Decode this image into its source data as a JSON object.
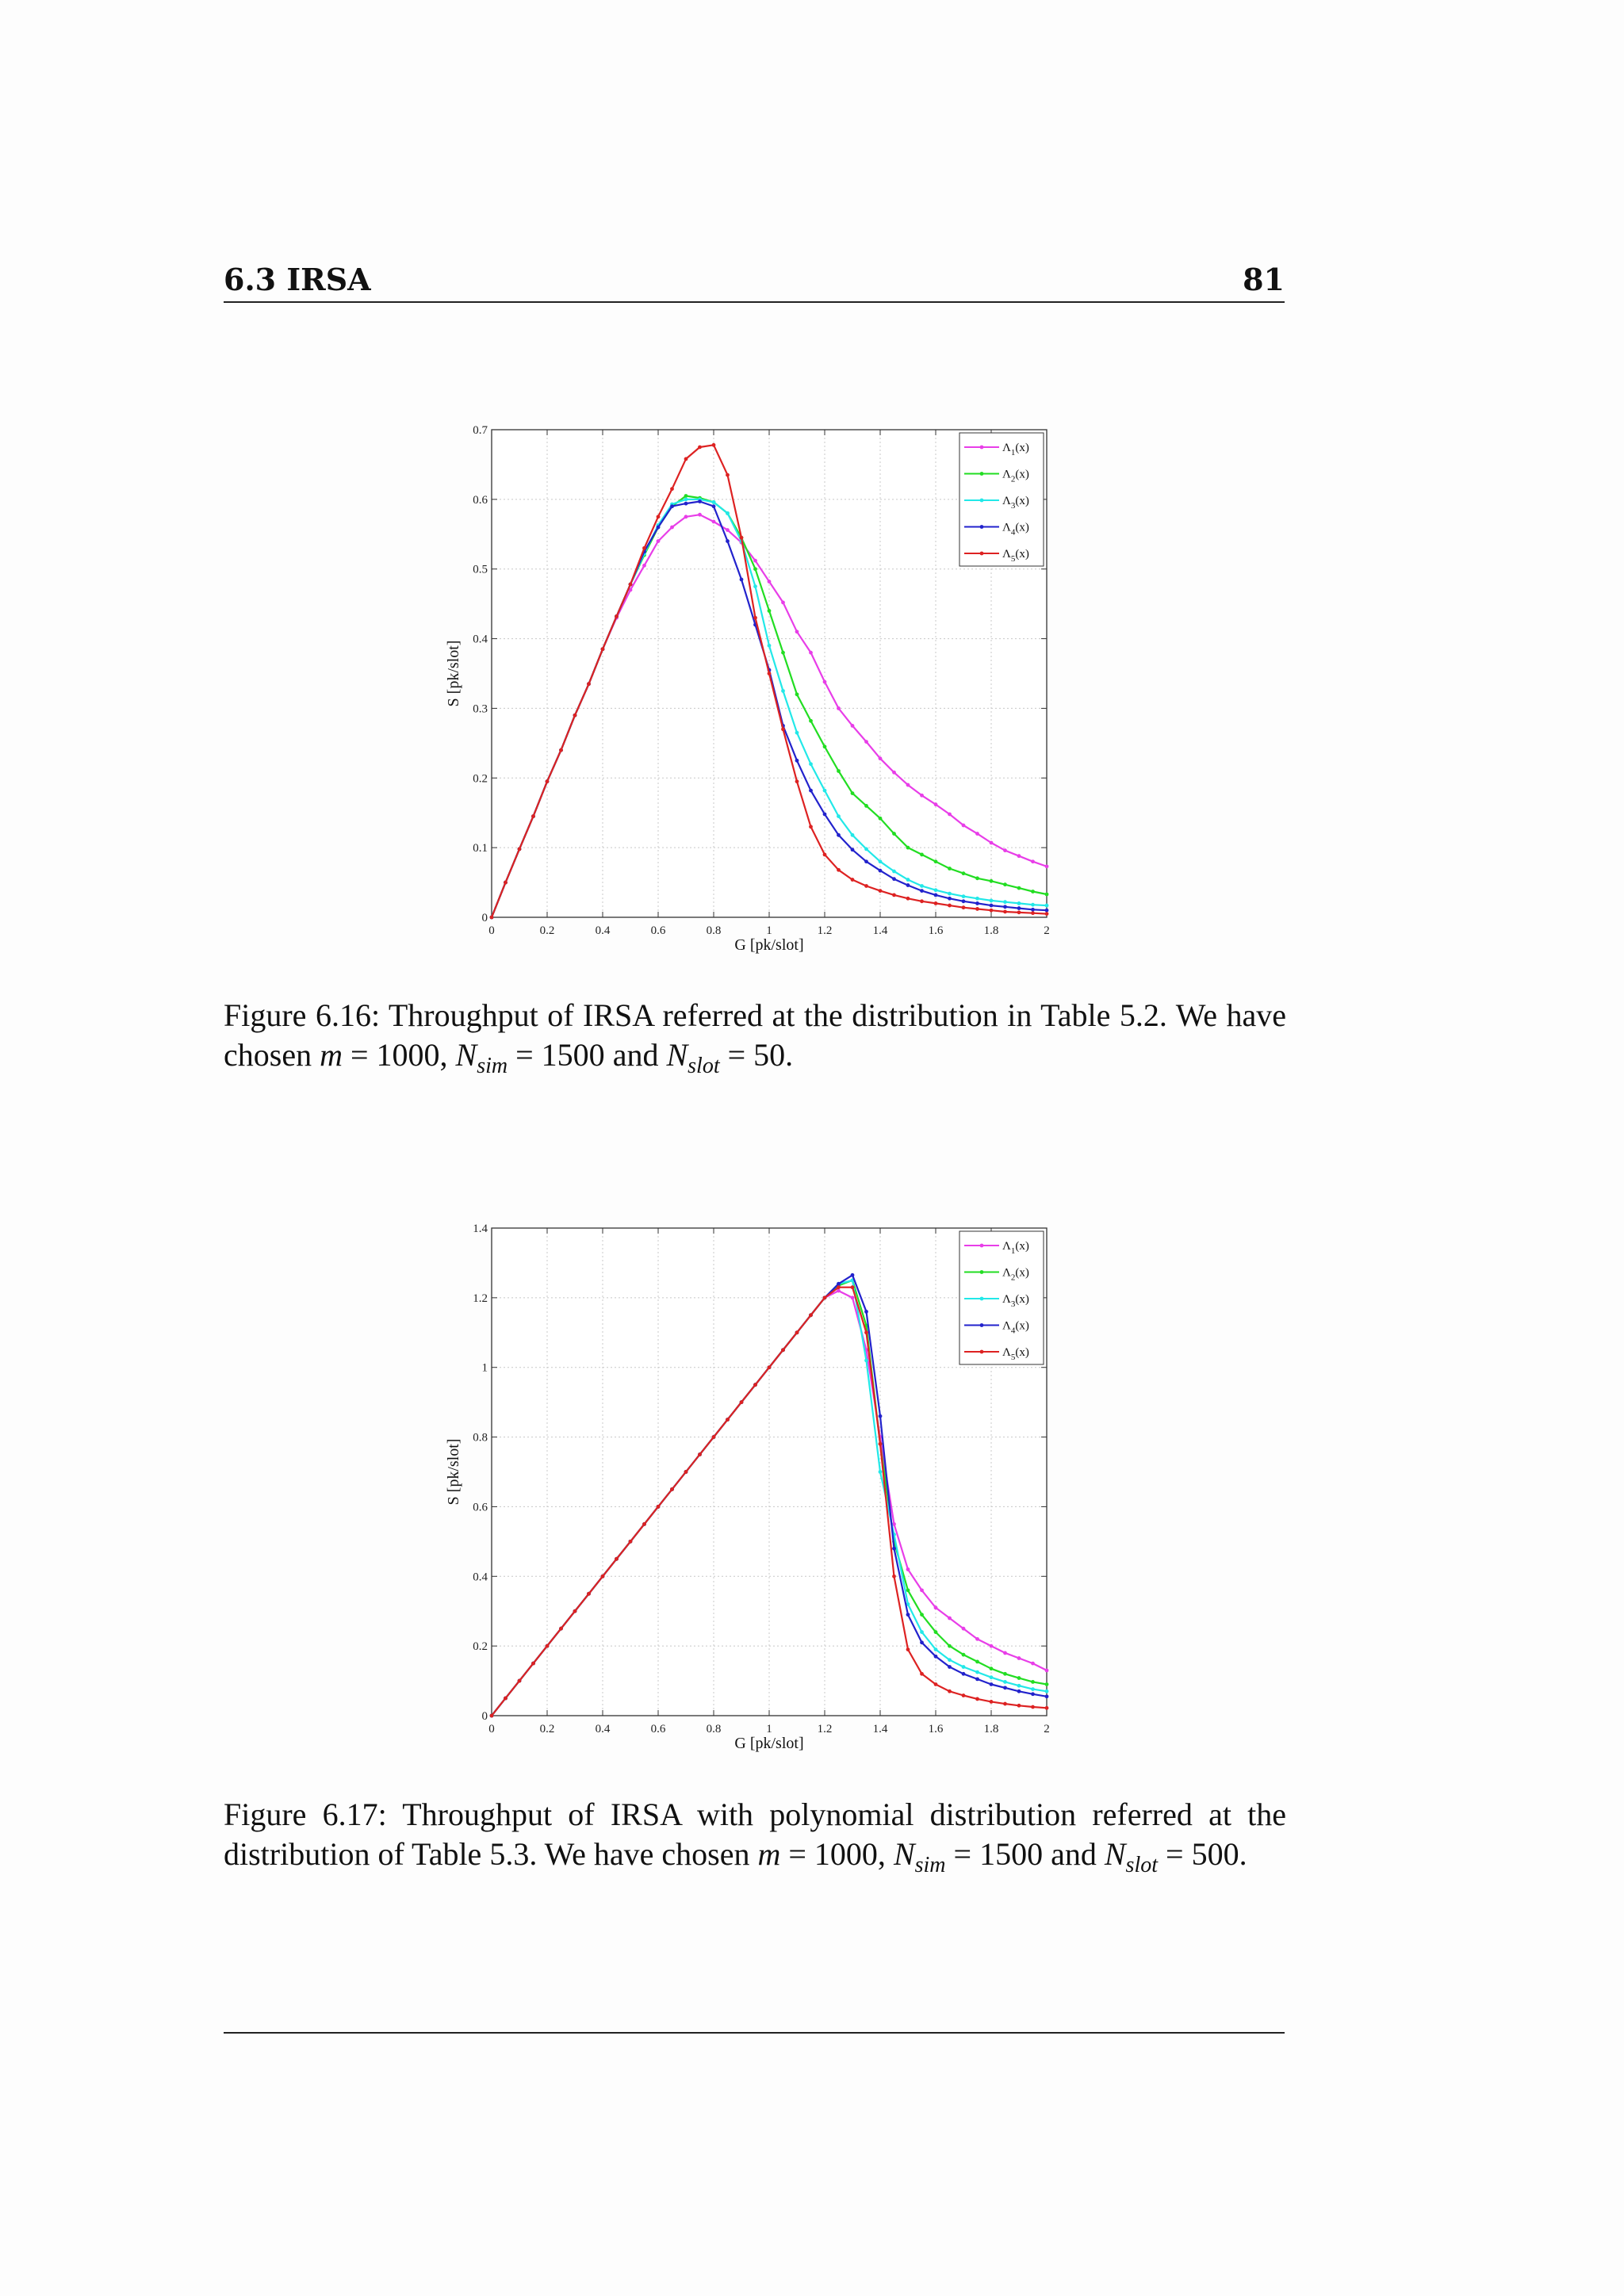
{
  "header": {
    "section": "6.3 IRSA",
    "page_number": "81"
  },
  "figures": [
    {
      "caption": {
        "label": "Figure 6.16:",
        "text": "Throughput of IRSA referred at the distribution in Table 5.2.",
        "line2_prefix": "We have chosen",
        "m_sym": "m",
        "m_val": "= 1000,",
        "nsim_sym": "N",
        "nsim_sub": "sim",
        "nsim_val": "= 1500",
        "and": "and",
        "nslot_sym": "N",
        "nslot_sub": "slot",
        "nslot_val": "= 50."
      }
    },
    {
      "caption": {
        "label": "Figure 6.17:",
        "text": "Throughput of IRSA with polynomial distribution referred at the distribution of Table 5.3. We have chosen",
        "m_sym": "m",
        "m_val": "= 1000,",
        "nsim_sym": "N",
        "nsim_sub": "sim",
        "nsim_val": "= 1500",
        "and": "and",
        "nslot_sym": "N",
        "nslot_sub": "slot",
        "nslot_val": "= 500."
      }
    }
  ],
  "chart_data": [
    {
      "type": "line",
      "xlabel": "G [pk/slot]",
      "ylabel": "S [pk/slot]",
      "xlim": [
        0,
        2
      ],
      "ylim": [
        0,
        0.7
      ],
      "xticks": [
        "0",
        "0.2",
        "0.4",
        "0.6",
        "0.8",
        "1",
        "1.2",
        "1.4",
        "1.6",
        "1.8",
        "2"
      ],
      "yticks": [
        "0",
        "0.1",
        "0.2",
        "0.3",
        "0.4",
        "0.5",
        "0.6",
        "0.7"
      ],
      "grid": true,
      "legend_position": "top-right",
      "x": [
        0,
        0.05,
        0.1,
        0.15,
        0.2,
        0.25,
        0.3,
        0.35,
        0.4,
        0.45,
        0.5,
        0.55,
        0.6,
        0.65,
        0.7,
        0.75,
        0.8,
        0.85,
        0.9,
        0.95,
        1.0,
        1.05,
        1.1,
        1.15,
        1.2,
        1.25,
        1.3,
        1.35,
        1.4,
        1.45,
        1.5,
        1.55,
        1.6,
        1.65,
        1.7,
        1.75,
        1.8,
        1.85,
        1.9,
        1.95,
        2.0
      ],
      "series": [
        {
          "name": "Λ1(x)",
          "label_main": "Λ",
          "label_sub": "1",
          "label_tail": "(x)",
          "color": "#e83ee8",
          "values": [
            0,
            0.05,
            0.098,
            0.145,
            0.195,
            0.24,
            0.29,
            0.335,
            0.385,
            0.43,
            0.47,
            0.505,
            0.54,
            0.56,
            0.575,
            0.578,
            0.568,
            0.556,
            0.538,
            0.512,
            0.482,
            0.452,
            0.41,
            0.38,
            0.338,
            0.3,
            0.275,
            0.252,
            0.228,
            0.208,
            0.19,
            0.175,
            0.162,
            0.148,
            0.132,
            0.12,
            0.107,
            0.096,
            0.088,
            0.08,
            0.073
          ]
        },
        {
          "name": "Λ2(x)",
          "label_main": "Λ",
          "label_sub": "2",
          "label_tail": "(x)",
          "color": "#22dd22",
          "values": [
            0,
            0.05,
            0.098,
            0.145,
            0.195,
            0.24,
            0.29,
            0.335,
            0.385,
            0.432,
            0.478,
            0.52,
            0.56,
            0.59,
            0.605,
            0.602,
            0.596,
            0.58,
            0.545,
            0.5,
            0.44,
            0.38,
            0.32,
            0.282,
            0.245,
            0.21,
            0.178,
            0.16,
            0.142,
            0.12,
            0.1,
            0.09,
            0.08,
            0.07,
            0.063,
            0.056,
            0.052,
            0.047,
            0.042,
            0.037,
            0.033
          ]
        },
        {
          "name": "Λ3(x)",
          "label_main": "Λ",
          "label_sub": "3",
          "label_tail": "(x)",
          "color": "#22e8e8",
          "values": [
            0,
            0.05,
            0.098,
            0.145,
            0.195,
            0.24,
            0.29,
            0.335,
            0.385,
            0.432,
            0.478,
            0.522,
            0.563,
            0.593,
            0.6,
            0.6,
            0.596,
            0.58,
            0.54,
            0.475,
            0.39,
            0.325,
            0.265,
            0.22,
            0.182,
            0.145,
            0.118,
            0.098,
            0.08,
            0.066,
            0.054,
            0.045,
            0.039,
            0.034,
            0.03,
            0.027,
            0.024,
            0.022,
            0.02,
            0.018,
            0.017
          ]
        },
        {
          "name": "Λ4(x)",
          "label_main": "Λ",
          "label_sub": "4",
          "label_tail": "(x)",
          "color": "#2222cc",
          "values": [
            0,
            0.05,
            0.098,
            0.145,
            0.195,
            0.24,
            0.29,
            0.335,
            0.385,
            0.432,
            0.478,
            0.525,
            0.56,
            0.59,
            0.594,
            0.597,
            0.59,
            0.54,
            0.485,
            0.42,
            0.355,
            0.275,
            0.225,
            0.182,
            0.148,
            0.118,
            0.097,
            0.08,
            0.067,
            0.055,
            0.046,
            0.038,
            0.032,
            0.027,
            0.023,
            0.02,
            0.017,
            0.015,
            0.013,
            0.011,
            0.01
          ]
        },
        {
          "name": "Λ5(x)",
          "label_main": "Λ",
          "label_sub": "5",
          "label_tail": "(x)",
          "color": "#dd2222",
          "values": [
            0,
            0.05,
            0.098,
            0.145,
            0.195,
            0.24,
            0.29,
            0.335,
            0.385,
            0.432,
            0.478,
            0.53,
            0.575,
            0.615,
            0.658,
            0.675,
            0.678,
            0.635,
            0.545,
            0.43,
            0.35,
            0.27,
            0.195,
            0.13,
            0.09,
            0.068,
            0.054,
            0.045,
            0.038,
            0.032,
            0.027,
            0.023,
            0.02,
            0.017,
            0.014,
            0.012,
            0.01,
            0.008,
            0.007,
            0.006,
            0.005
          ]
        }
      ]
    },
    {
      "type": "line",
      "xlabel": "G [pk/slot]",
      "ylabel": "S [pk/slot]",
      "xlim": [
        0,
        2
      ],
      "ylim": [
        0,
        1.4
      ],
      "xticks": [
        "0",
        "0.2",
        "0.4",
        "0.6",
        "0.8",
        "1",
        "1.2",
        "1.4",
        "1.6",
        "1.8",
        "2"
      ],
      "yticks": [
        "0",
        "0.2",
        "0.4",
        "0.6",
        "0.8",
        "1",
        "1.2",
        "1.4"
      ],
      "grid": true,
      "legend_position": "top-right",
      "x": [
        0,
        0.05,
        0.1,
        0.15,
        0.2,
        0.25,
        0.3,
        0.35,
        0.4,
        0.45,
        0.5,
        0.55,
        0.6,
        0.65,
        0.7,
        0.75,
        0.8,
        0.85,
        0.9,
        0.95,
        1.0,
        1.05,
        1.1,
        1.15,
        1.2,
        1.25,
        1.3,
        1.35,
        1.4,
        1.45,
        1.5,
        1.55,
        1.6,
        1.65,
        1.7,
        1.75,
        1.8,
        1.85,
        1.9,
        1.95,
        2.0
      ],
      "series": [
        {
          "name": "Λ1(x)",
          "label_main": "Λ",
          "label_sub": "1",
          "label_tail": "(x)",
          "color": "#e83ee8",
          "values": [
            0,
            0.05,
            0.1,
            0.15,
            0.2,
            0.25,
            0.3,
            0.35,
            0.4,
            0.45,
            0.5,
            0.55,
            0.6,
            0.65,
            0.7,
            0.75,
            0.8,
            0.85,
            0.9,
            0.95,
            1.0,
            1.05,
            1.1,
            1.15,
            1.2,
            1.22,
            1.2,
            1.05,
            0.8,
            0.55,
            0.42,
            0.36,
            0.31,
            0.28,
            0.25,
            0.22,
            0.2,
            0.18,
            0.165,
            0.15,
            0.13
          ]
        },
        {
          "name": "Λ2(x)",
          "label_main": "Λ",
          "label_sub": "2",
          "label_tail": "(x)",
          "color": "#22dd22",
          "values": [
            0,
            0.05,
            0.1,
            0.15,
            0.2,
            0.25,
            0.3,
            0.35,
            0.4,
            0.45,
            0.5,
            0.55,
            0.6,
            0.65,
            0.7,
            0.75,
            0.8,
            0.85,
            0.9,
            0.95,
            1.0,
            1.05,
            1.1,
            1.15,
            1.2,
            1.235,
            1.25,
            1.12,
            0.78,
            0.5,
            0.36,
            0.29,
            0.24,
            0.2,
            0.175,
            0.155,
            0.135,
            0.12,
            0.108,
            0.097,
            0.09
          ]
        },
        {
          "name": "Λ3(x)",
          "label_main": "Λ",
          "label_sub": "3",
          "label_tail": "(x)",
          "color": "#22e8e8",
          "values": [
            0,
            0.05,
            0.1,
            0.15,
            0.2,
            0.25,
            0.3,
            0.35,
            0.4,
            0.45,
            0.5,
            0.55,
            0.6,
            0.65,
            0.7,
            0.75,
            0.8,
            0.85,
            0.9,
            0.95,
            1.0,
            1.05,
            1.1,
            1.15,
            1.2,
            1.24,
            1.25,
            1.02,
            0.7,
            0.52,
            0.32,
            0.24,
            0.19,
            0.16,
            0.14,
            0.125,
            0.11,
            0.097,
            0.086,
            0.076,
            0.07
          ]
        },
        {
          "name": "Λ4(x)",
          "label_main": "Λ",
          "label_sub": "4",
          "label_tail": "(x)",
          "color": "#2222cc",
          "values": [
            0,
            0.05,
            0.1,
            0.15,
            0.2,
            0.25,
            0.3,
            0.35,
            0.4,
            0.45,
            0.5,
            0.55,
            0.6,
            0.65,
            0.7,
            0.75,
            0.8,
            0.85,
            0.9,
            0.95,
            1.0,
            1.05,
            1.1,
            1.15,
            1.2,
            1.24,
            1.265,
            1.16,
            0.86,
            0.48,
            0.29,
            0.21,
            0.17,
            0.14,
            0.12,
            0.105,
            0.09,
            0.08,
            0.07,
            0.062,
            0.055
          ]
        },
        {
          "name": "Λ5(x)",
          "label_main": "Λ",
          "label_sub": "5",
          "label_tail": "(x)",
          "color": "#dd2222",
          "values": [
            0,
            0.05,
            0.1,
            0.15,
            0.2,
            0.25,
            0.3,
            0.35,
            0.4,
            0.45,
            0.5,
            0.55,
            0.6,
            0.65,
            0.7,
            0.75,
            0.8,
            0.85,
            0.9,
            0.95,
            1.0,
            1.05,
            1.1,
            1.15,
            1.2,
            1.23,
            1.23,
            1.1,
            0.78,
            0.4,
            0.19,
            0.12,
            0.09,
            0.07,
            0.058,
            0.048,
            0.04,
            0.034,
            0.029,
            0.025,
            0.022
          ]
        }
      ]
    }
  ]
}
